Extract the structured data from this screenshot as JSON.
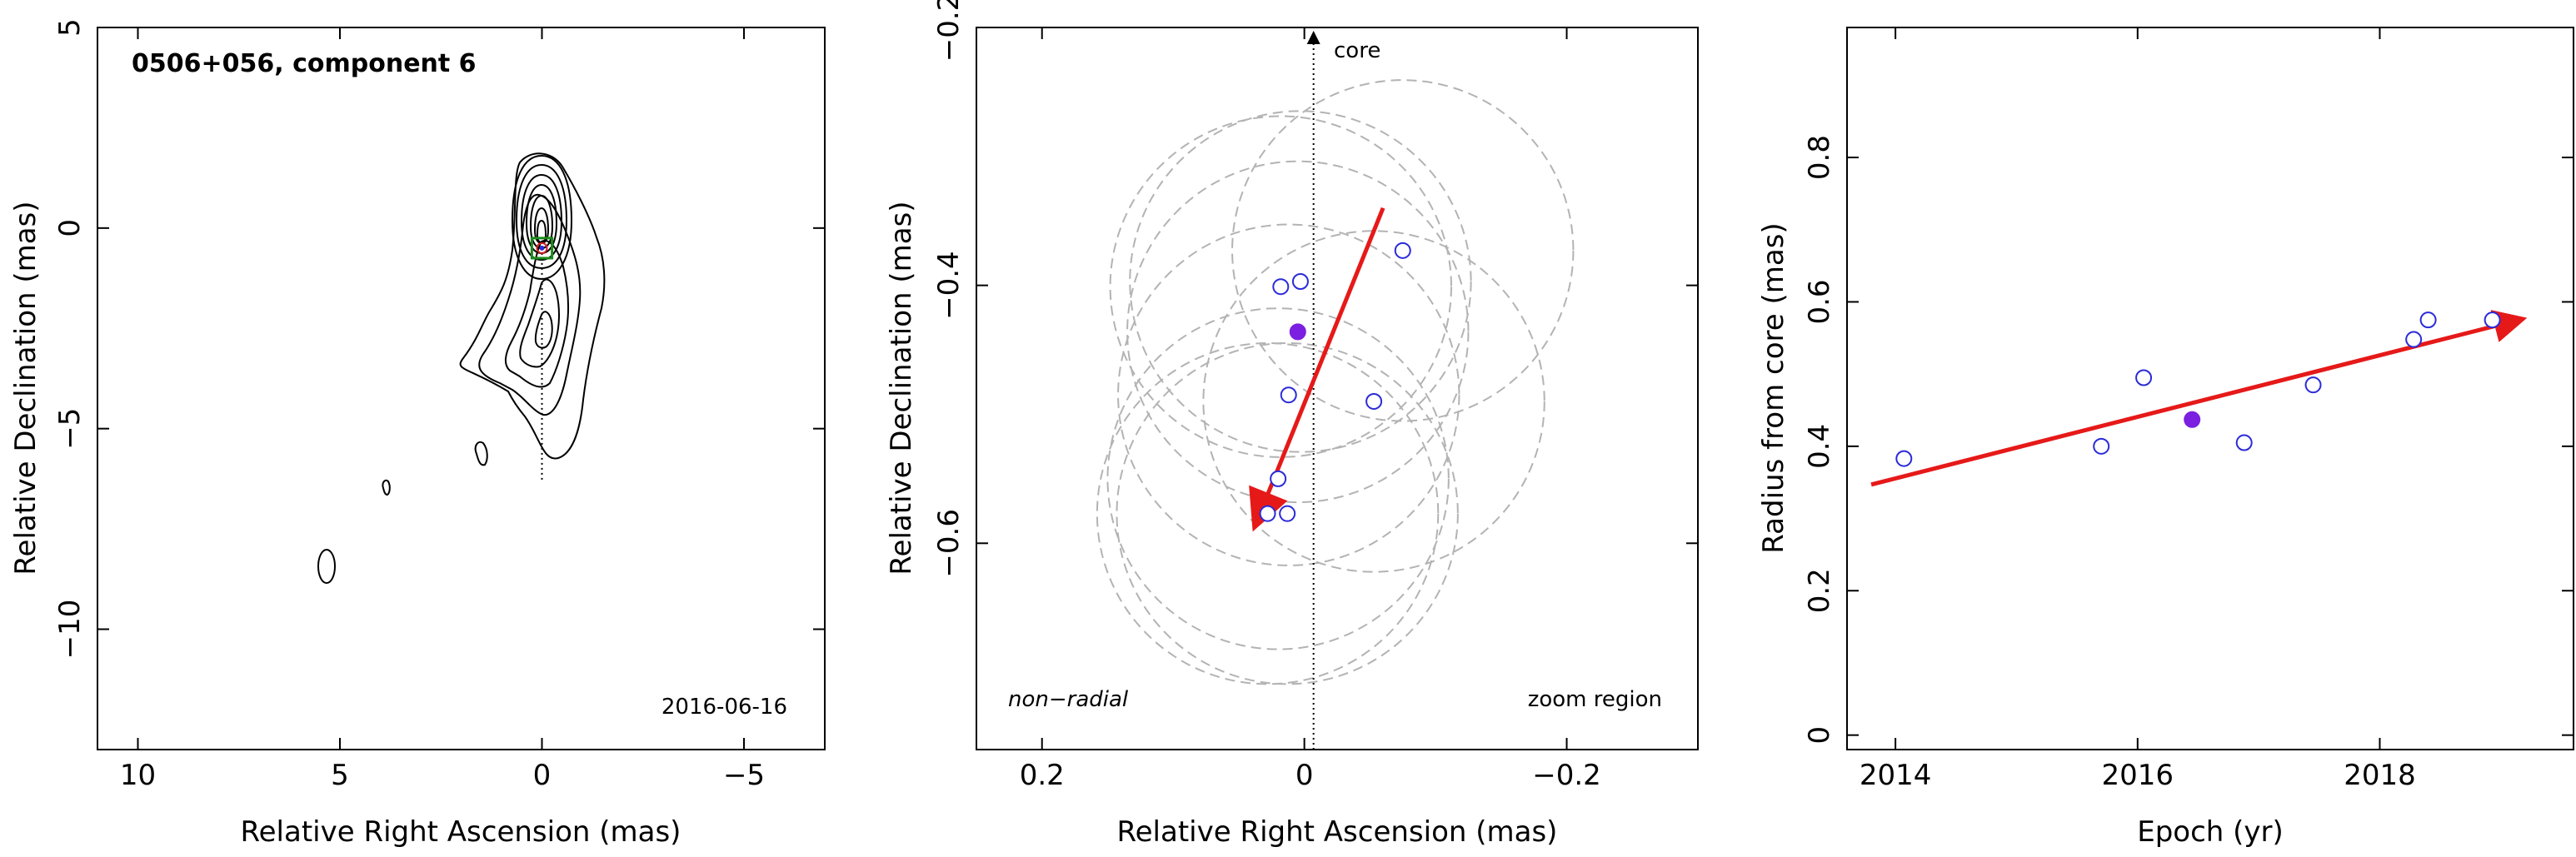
{
  "chart_data": [
    {
      "type": "contour",
      "title": "0506+056, component 6",
      "epoch_label": "2016-06-16",
      "xlabel": "Relative Right Ascension (mas)",
      "ylabel": "Relative Declination (mas)",
      "xlim": [
        11,
        -7
      ],
      "ylim": [
        -13,
        5
      ],
      "xticks": [
        10,
        5,
        0,
        -5
      ],
      "xtick_labels": [
        "10",
        "5",
        "0",
        "−5"
      ],
      "yticks": [
        5,
        0,
        -5,
        -10
      ],
      "ytick_labels": [
        "5",
        "0",
        "−5",
        "−10"
      ],
      "component_position": [
        0,
        -0.5
      ],
      "zoom_box": {
        "x": [
          0.25,
          -0.25
        ],
        "y": [
          -0.25,
          -0.75
        ]
      },
      "core_direction_line": {
        "from": [
          0,
          -0.5
        ],
        "to": [
          0,
          -6.3
        ]
      },
      "colors": {
        "marker": "#d62020",
        "box": "#1a8a1a",
        "component": "#2b2bd9"
      }
    },
    {
      "type": "scatter",
      "xlabel": "Relative Right Ascension (mas)",
      "ylabel": "Relative Declination (mas)",
      "xlim": [
        0.25,
        -0.3
      ],
      "ylim": [
        -0.76,
        -0.2
      ],
      "xticks": [
        0.2,
        0,
        -0.2
      ],
      "xtick_labels": [
        "0.2",
        "0",
        "−0.2"
      ],
      "yticks": [
        -0.2,
        -0.4,
        -0.6
      ],
      "ytick_labels": [
        "−0.2",
        "−0.4",
        "−0.6"
      ],
      "annotations": {
        "core": "core",
        "classification": "non−radial",
        "region": "zoom region"
      },
      "points": [
        {
          "x": -0.075,
          "y": -0.373
        },
        {
          "x": 0.003,
          "y": -0.397
        },
        {
          "x": 0.018,
          "y": -0.401
        },
        {
          "x": 0.012,
          "y": -0.485
        },
        {
          "x": -0.053,
          "y": -0.49
        },
        {
          "x": 0.02,
          "y": -0.55
        },
        {
          "x": 0.028,
          "y": -0.577
        },
        {
          "x": 0.013,
          "y": -0.577
        }
      ],
      "selected_point": {
        "x": 0.005,
        "y": -0.436
      },
      "position_uncertainty_radius": 0.13,
      "core_direction": {
        "x": -0.007,
        "y_from": -0.76,
        "y_to": -0.2
      },
      "motion_vector": {
        "x0": -0.06,
        "y0": -0.34,
        "x1": 0.037,
        "y1": -0.585
      },
      "colors": {
        "points": "#2b2bd9",
        "selected": "#7b1fe0",
        "vector": "#e61919",
        "circles": "#b3b3b3"
      }
    },
    {
      "type": "scatter",
      "xlabel": "Epoch (yr)",
      "ylabel": "Radius from core (mas)",
      "xlim": [
        2013.6,
        2019.6
      ],
      "ylim": [
        -0.02,
        0.98
      ],
      "xticks": [
        2014,
        2016,
        2018
      ],
      "xtick_labels": [
        "2014",
        "2016",
        "2018"
      ],
      "yticks": [
        0,
        0.2,
        0.4,
        0.6,
        0.8
      ],
      "ytick_labels": [
        "0",
        "0.2",
        "0.4",
        "0.6",
        "0.8"
      ],
      "points": [
        {
          "x": 2014.07,
          "y": 0.383
        },
        {
          "x": 2015.7,
          "y": 0.4
        },
        {
          "x": 2016.05,
          "y": 0.495
        },
        {
          "x": 2016.88,
          "y": 0.405
        },
        {
          "x": 2017.45,
          "y": 0.485
        },
        {
          "x": 2018.28,
          "y": 0.548
        },
        {
          "x": 2018.4,
          "y": 0.575
        },
        {
          "x": 2018.93,
          "y": 0.575
        }
      ],
      "selected_point": {
        "x": 2016.45,
        "y": 0.437
      },
      "trend": {
        "x0": 2013.8,
        "y0": 0.347,
        "x1": 2019.15,
        "y1": 0.575
      },
      "colors": {
        "points": "#2b2bd9",
        "selected": "#7b1fe0",
        "trend": "#e61919"
      }
    }
  ]
}
